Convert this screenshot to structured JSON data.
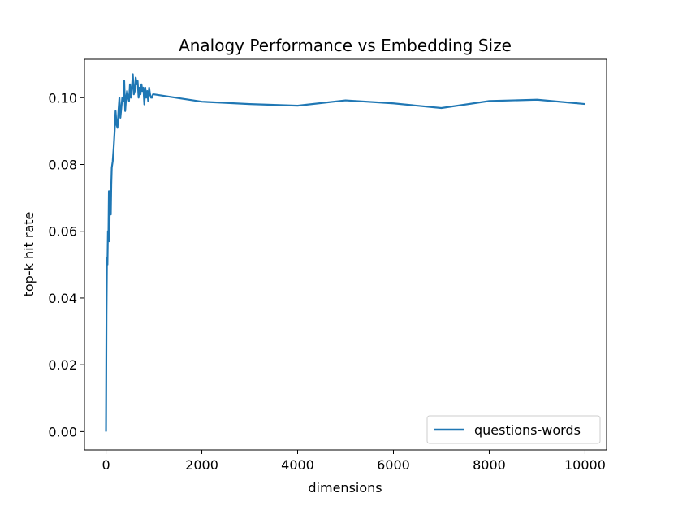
{
  "chart_data": {
    "type": "line",
    "title": "Analogy Performance vs Embedding Size",
    "xlabel": "dimensions",
    "ylabel": "top-k hit rate",
    "xlim": [
      -450,
      10450
    ],
    "ylim": [
      -0.0055,
      0.1115
    ],
    "xticks": [
      0,
      2000,
      4000,
      6000,
      8000,
      10000
    ],
    "xtick_labels": [
      "0",
      "2000",
      "4000",
      "6000",
      "8000",
      "10000"
    ],
    "yticks": [
      0.0,
      0.02,
      0.04,
      0.06,
      0.08,
      0.1
    ],
    "ytick_labels": [
      "0.00",
      "0.02",
      "0.04",
      "0.06",
      "0.08",
      "0.10"
    ],
    "grid": false,
    "legend_position": "lower-right",
    "series": [
      {
        "name": "questions-words",
        "color": "#1f77b4",
        "x": [
          0,
          10,
          20,
          30,
          40,
          50,
          60,
          70,
          80,
          90,
          100,
          110,
          120,
          140,
          160,
          180,
          200,
          220,
          240,
          260,
          280,
          300,
          320,
          340,
          360,
          380,
          400,
          420,
          440,
          460,
          480,
          500,
          520,
          540,
          560,
          580,
          600,
          620,
          640,
          660,
          680,
          700,
          720,
          740,
          760,
          780,
          800,
          820,
          840,
          860,
          880,
          900,
          920,
          940,
          960,
          980,
          1000,
          2000,
          3000,
          4000,
          5000,
          6000,
          7000,
          8000,
          9000,
          10000
        ],
        "y": [
          0.0,
          0.035,
          0.052,
          0.05,
          0.06,
          0.058,
          0.072,
          0.057,
          0.072,
          0.07,
          0.065,
          0.074,
          0.079,
          0.081,
          0.085,
          0.09,
          0.096,
          0.092,
          0.091,
          0.096,
          0.1,
          0.094,
          0.097,
          0.1,
          0.099,
          0.105,
          0.096,
          0.1,
          0.102,
          0.1,
          0.099,
          0.104,
          0.1,
          0.103,
          0.107,
          0.101,
          0.102,
          0.106,
          0.104,
          0.105,
          0.1,
          0.103,
          0.101,
          0.104,
          0.102,
          0.103,
          0.098,
          0.103,
          0.1,
          0.102,
          0.099,
          0.103,
          0.101,
          0.1,
          0.1,
          0.101,
          0.101,
          0.0988,
          0.0981,
          0.0976,
          0.0992,
          0.0983,
          0.0969,
          0.099,
          0.0994,
          0.0981
        ]
      }
    ]
  }
}
